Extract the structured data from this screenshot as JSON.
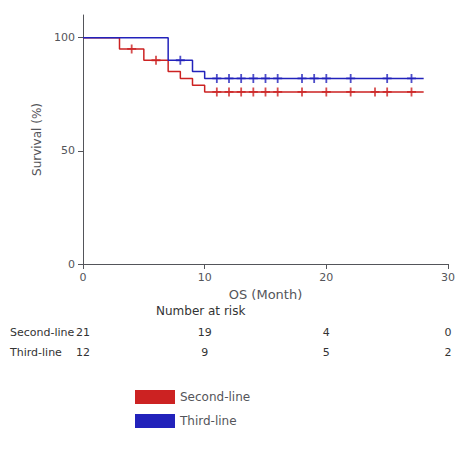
{
  "chart_data": {
    "type": "step",
    "xlabel": "OS (Month)",
    "ylabel": "Survival (%)",
    "xlim": [
      0,
      30
    ],
    "ylim": [
      0,
      110
    ],
    "xticks": [
      0,
      10,
      20,
      30
    ],
    "yticks": [
      0,
      50,
      100
    ],
    "grid": false,
    "legend": "bottom",
    "series": [
      {
        "name": "Second-line",
        "color": "#cc2222",
        "x": [
          0,
          2,
          3,
          5,
          7,
          8,
          9,
          10,
          28
        ],
        "values": [
          100,
          100,
          95,
          90,
          85,
          82,
          79,
          76,
          76
        ],
        "censors": {
          "marker": "plus",
          "x": [
            4,
            6,
            11,
            12,
            13,
            14,
            15,
            16,
            18,
            20,
            22,
            24,
            25,
            27
          ],
          "values": [
            95,
            90,
            76,
            76,
            76,
            76,
            76,
            76,
            76,
            76,
            76,
            76,
            76,
            76
          ]
        }
      },
      {
        "name": "Third-line",
        "color": "#2222bb",
        "x": [
          0,
          6,
          7,
          9,
          10,
          28
        ],
        "values": [
          100,
          100,
          90,
          85,
          82,
          82
        ],
        "censors": {
          "marker": "plus",
          "x": [
            8,
            11,
            12,
            13,
            14,
            15,
            16,
            18,
            19,
            20,
            22,
            25,
            27
          ],
          "values": [
            90,
            82,
            82,
            82,
            82,
            82,
            82,
            82,
            82,
            82,
            82,
            82,
            82
          ]
        }
      }
    ],
    "risk_table": {
      "title": "Number at risk",
      "x": [
        0,
        10,
        20,
        30
      ],
      "rows": [
        {
          "name": "Second-line",
          "values": [
            21,
            19,
            4,
            0
          ]
        },
        {
          "name": "Third-line",
          "values": [
            12,
            9,
            5,
            2
          ]
        }
      ]
    }
  }
}
